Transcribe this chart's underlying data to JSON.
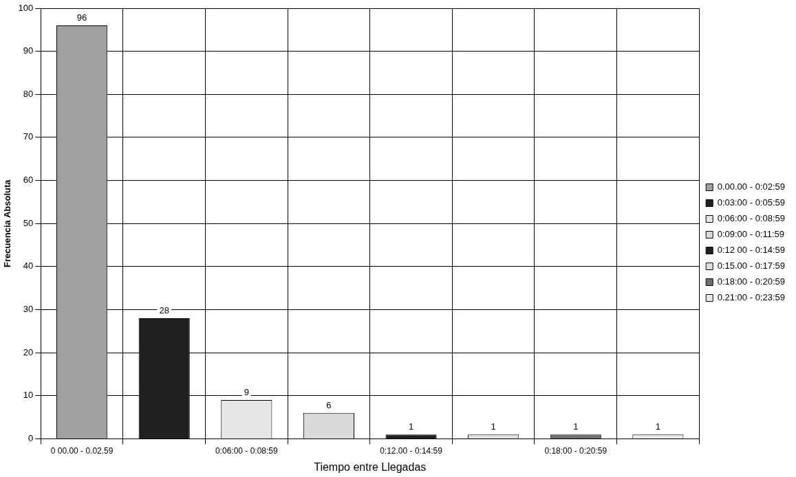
{
  "chart_data": {
    "type": "bar",
    "xlabel": "Tiempo entre Llegadas",
    "ylabel": "Frecuencia Absoluta",
    "categories": [
      "0 00.00 - 0.02.59",
      null,
      "0:06:00 - 0:08:59",
      null,
      "0:12.00 - 0:14:59",
      null,
      "0:18:00 - 0:20:59",
      null
    ],
    "series": [
      {
        "name": "0.00.00 - 0:02:59",
        "color": "#a0a0a0",
        "values": [
          96,
          null,
          null,
          null,
          null,
          null,
          null,
          null
        ]
      },
      {
        "name": "0:03:00 - 0:05:59",
        "color": "#202020",
        "values": [
          null,
          28,
          null,
          null,
          null,
          null,
          null,
          null
        ]
      },
      {
        "name": "0:06:00 - 0:08:59",
        "color": "#e6e6e6",
        "values": [
          null,
          null,
          9,
          null,
          null,
          null,
          null,
          null
        ]
      },
      {
        "name": "0:09:00 - 0:11:59",
        "color": "#dadada",
        "values": [
          null,
          null,
          null,
          6,
          null,
          null,
          null,
          null
        ]
      },
      {
        "name": "0:12 00 - 0:14:59",
        "color": "#202020",
        "values": [
          null,
          null,
          null,
          null,
          1,
          null,
          null,
          null
        ]
      },
      {
        "name": "0:15.00 - 0:17:59",
        "color": "#e0e0e0",
        "values": [
          null,
          null,
          null,
          null,
          null,
          1,
          null,
          null
        ]
      },
      {
        "name": "0:18:00 - 0:20:59",
        "color": "#707070",
        "values": [
          null,
          null,
          null,
          null,
          null,
          null,
          1,
          null
        ]
      },
      {
        "name": "0.21:00 - 0:23:59",
        "color": "#eaeaea",
        "values": [
          null,
          null,
          null,
          null,
          null,
          null,
          null,
          1
        ]
      }
    ],
    "ylim": [
      0,
      100
    ],
    "yticks": [
      0,
      10,
      20,
      30,
      40,
      50,
      60,
      70,
      80,
      90,
      100
    ],
    "grid": true,
    "legend": "right",
    "data_labels": true
  }
}
